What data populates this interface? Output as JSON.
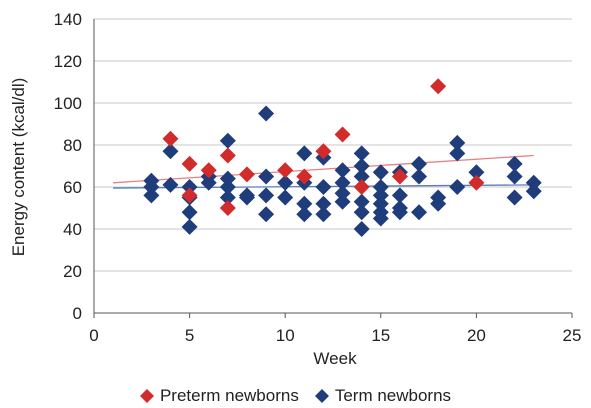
{
  "chart_data": {
    "type": "scatter",
    "title": "",
    "xlabel": "Week",
    "ylabel": "Energy content (kcal/dl)",
    "xlim": [
      0,
      25
    ],
    "ylim": [
      0,
      140
    ],
    "xticks": [
      0,
      5,
      10,
      15,
      20,
      25
    ],
    "yticks": [
      0,
      20,
      40,
      60,
      80,
      100,
      120,
      140
    ],
    "grid": "horizontal",
    "legend_position": "bottom",
    "series": [
      {
        "name": "Preterm newborns",
        "color": "#d22b2b",
        "marker": "diamond",
        "points": [
          [
            4,
            83
          ],
          [
            5,
            71
          ],
          [
            5,
            56
          ],
          [
            6,
            68
          ],
          [
            7,
            75
          ],
          [
            7,
            50
          ],
          [
            8,
            66
          ],
          [
            10,
            68
          ],
          [
            11,
            65
          ],
          [
            12,
            77
          ],
          [
            13,
            85
          ],
          [
            14,
            60
          ],
          [
            16,
            65
          ],
          [
            18,
            108
          ],
          [
            20,
            62
          ]
        ],
        "trendline": {
          "x": [
            1,
            23
          ],
          "y": [
            62,
            75
          ]
        }
      },
      {
        "name": "Term newborns",
        "color": "#1f3d7a",
        "marker": "diamond",
        "points": [
          [
            3,
            63
          ],
          [
            3,
            60
          ],
          [
            3,
            56
          ],
          [
            4,
            77
          ],
          [
            4,
            61
          ],
          [
            5,
            60
          ],
          [
            5,
            55
          ],
          [
            5,
            48
          ],
          [
            5,
            41
          ],
          [
            6,
            65
          ],
          [
            6,
            62
          ],
          [
            7,
            82
          ],
          [
            7,
            64
          ],
          [
            7,
            60
          ],
          [
            7,
            55
          ],
          [
            8,
            56
          ],
          [
            8,
            55
          ],
          [
            9,
            95
          ],
          [
            9,
            65
          ],
          [
            9,
            56
          ],
          [
            9,
            47
          ],
          [
            10,
            62
          ],
          [
            10,
            55
          ],
          [
            11,
            76
          ],
          [
            11,
            62
          ],
          [
            11,
            52
          ],
          [
            11,
            47
          ],
          [
            12,
            74
          ],
          [
            12,
            60
          ],
          [
            12,
            52
          ],
          [
            12,
            47
          ],
          [
            13,
            68
          ],
          [
            13,
            62
          ],
          [
            13,
            57
          ],
          [
            13,
            53
          ],
          [
            14,
            76
          ],
          [
            14,
            70
          ],
          [
            14,
            65
          ],
          [
            14,
            53
          ],
          [
            14,
            48
          ],
          [
            14,
            40
          ],
          [
            15,
            67
          ],
          [
            15,
            60
          ],
          [
            15,
            56
          ],
          [
            15,
            52
          ],
          [
            15,
            48
          ],
          [
            15,
            45
          ],
          [
            16,
            67
          ],
          [
            16,
            56
          ],
          [
            16,
            50
          ],
          [
            16,
            48
          ],
          [
            17,
            71
          ],
          [
            17,
            65
          ],
          [
            17,
            48
          ],
          [
            18,
            55
          ],
          [
            18,
            52
          ],
          [
            19,
            81
          ],
          [
            19,
            76
          ],
          [
            19,
            60
          ],
          [
            20,
            67
          ],
          [
            22,
            71
          ],
          [
            22,
            65
          ],
          [
            22,
            55
          ],
          [
            23,
            62
          ],
          [
            23,
            58
          ]
        ],
        "trendline": {
          "x": [
            1,
            23
          ],
          "y": [
            59.5,
            61
          ]
        }
      }
    ]
  }
}
